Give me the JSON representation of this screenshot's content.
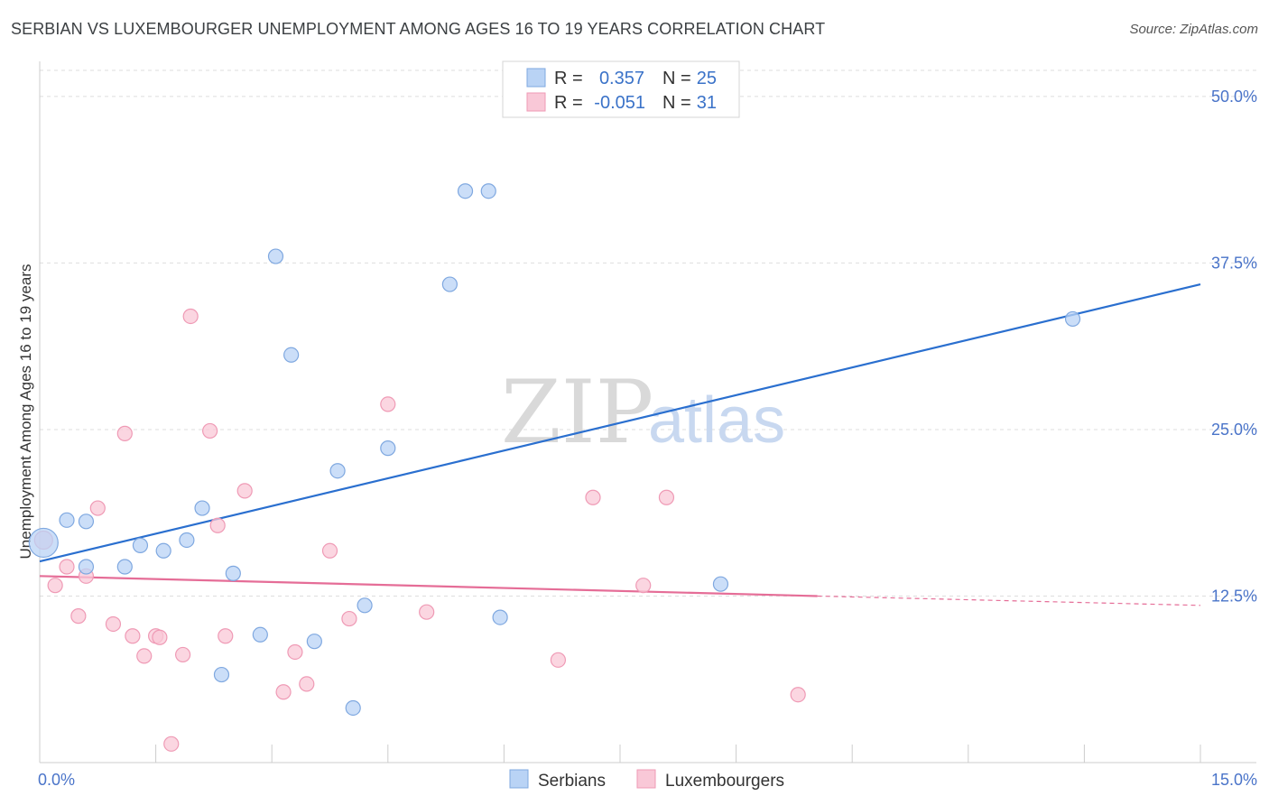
{
  "header": {
    "title": "SERBIAN VS LUXEMBOURGER UNEMPLOYMENT AMONG AGES 16 TO 19 YEARS CORRELATION CHART",
    "source": "Source: ZipAtlas.com"
  },
  "watermark": {
    "zip": "ZIP",
    "atlas": "atlas"
  },
  "legend": {
    "r_label": "R =",
    "n_label": "N =",
    "rows": [
      {
        "r": "0.357",
        "n": "25"
      },
      {
        "r": "-0.051",
        "n": "31"
      }
    ]
  },
  "colors": {
    "serbians_fill": "#b9d3f5",
    "serbians_stroke": "#7fa8e0",
    "serbians_line": "#2a6fcf",
    "lux_fill": "#f9c8d7",
    "lux_stroke": "#ef9ab5",
    "lux_line": "#e56d97",
    "grid": "#dddddd"
  },
  "chart_data": {
    "type": "scatter",
    "title": "SERBIAN VS LUXEMBOURGER UNEMPLOYMENT AMONG AGES 16 TO 19 YEARS CORRELATION CHART",
    "ylabel": "Unemployment Among Ages 16 to 19 years",
    "xlim": [
      0,
      15
    ],
    "ylim": [
      0,
      52.5
    ],
    "x_tick_labels": [
      "0.0%",
      "15.0%"
    ],
    "y_ticks": [
      12.5,
      25.0,
      37.5,
      50.0
    ],
    "y_tick_labels": [
      "12.5%",
      "25.0%",
      "37.5%",
      "50.0%"
    ],
    "grid": true,
    "series": [
      {
        "name": "Serbians",
        "r": 0.357,
        "n": 25,
        "points": [
          [
            0.05,
            16.5
          ],
          [
            0.35,
            18.2
          ],
          [
            0.6,
            18.1
          ],
          [
            0.6,
            14.7
          ],
          [
            1.1,
            14.7
          ],
          [
            1.3,
            16.3
          ],
          [
            1.6,
            15.9
          ],
          [
            1.9,
            16.7
          ],
          [
            2.1,
            19.1
          ],
          [
            2.35,
            6.6
          ],
          [
            2.5,
            14.2
          ],
          [
            2.85,
            9.6
          ],
          [
            3.05,
            38.0
          ],
          [
            3.25,
            30.6
          ],
          [
            3.55,
            9.1
          ],
          [
            3.85,
            21.9
          ],
          [
            4.05,
            4.1
          ],
          [
            4.2,
            11.8
          ],
          [
            4.5,
            23.6
          ],
          [
            5.3,
            35.9
          ],
          [
            5.5,
            42.9
          ],
          [
            5.8,
            42.9
          ],
          [
            5.95,
            10.9
          ],
          [
            8.8,
            13.4
          ],
          [
            13.35,
            33.3
          ]
        ],
        "trend": {
          "x": [
            0,
            15
          ],
          "y": [
            15.1,
            35.9
          ]
        }
      },
      {
        "name": "Luxembourgers",
        "r": -0.051,
        "n": 31,
        "points": [
          [
            0.05,
            16.7
          ],
          [
            0.2,
            13.3
          ],
          [
            0.35,
            14.7
          ],
          [
            0.5,
            11.0
          ],
          [
            0.6,
            14.0
          ],
          [
            0.75,
            19.1
          ],
          [
            0.95,
            10.4
          ],
          [
            1.1,
            24.7
          ],
          [
            1.2,
            9.5
          ],
          [
            1.35,
            8.0
          ],
          [
            1.5,
            9.5
          ],
          [
            1.55,
            9.4
          ],
          [
            1.7,
            1.4
          ],
          [
            1.85,
            8.1
          ],
          [
            1.95,
            33.5
          ],
          [
            2.2,
            24.9
          ],
          [
            2.3,
            17.8
          ],
          [
            2.4,
            9.5
          ],
          [
            2.65,
            20.4
          ],
          [
            3.15,
            5.3
          ],
          [
            3.3,
            8.3
          ],
          [
            3.45,
            5.9
          ],
          [
            3.75,
            15.9
          ],
          [
            4.0,
            10.8
          ],
          [
            4.5,
            26.9
          ],
          [
            5.0,
            11.3
          ],
          [
            6.7,
            7.7
          ],
          [
            7.15,
            19.9
          ],
          [
            7.8,
            13.3
          ],
          [
            8.1,
            19.9
          ],
          [
            9.8,
            5.1
          ]
        ],
        "trend": {
          "x": [
            0,
            10.05
          ],
          "y": [
            14.0,
            12.5
          ]
        },
        "trend_dashed": {
          "x": [
            10.05,
            15
          ],
          "y": [
            12.5,
            11.8
          ]
        }
      }
    ]
  }
}
